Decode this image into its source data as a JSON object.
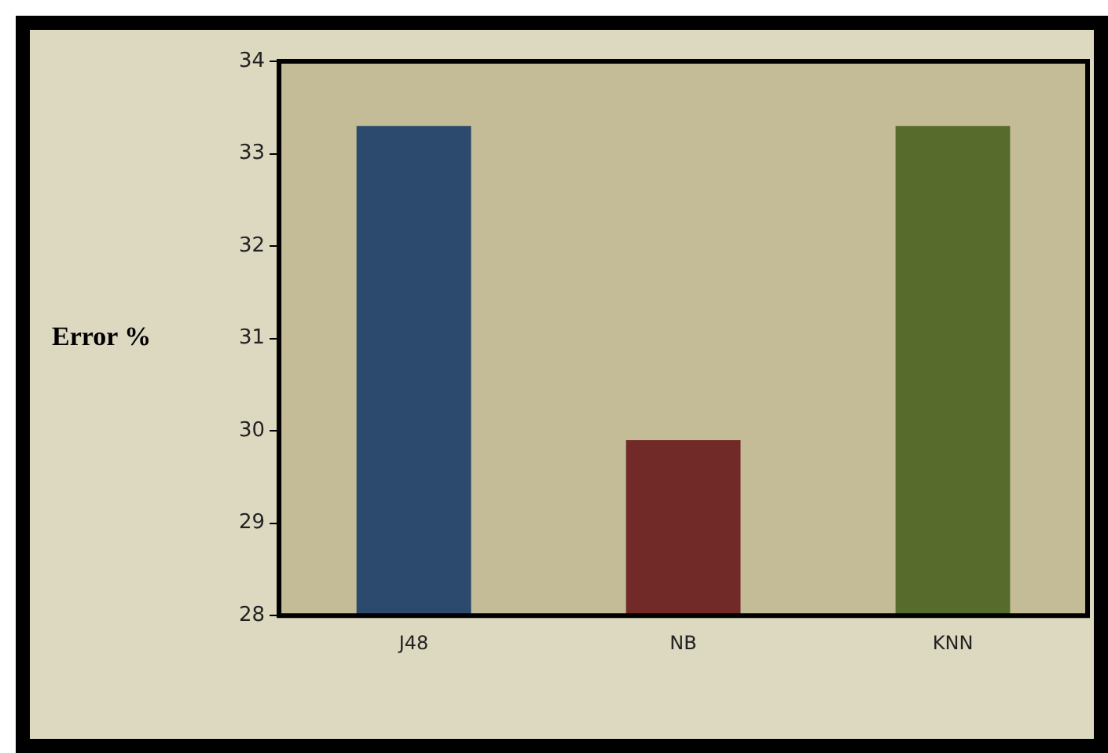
{
  "chart_data": {
    "type": "bar",
    "ylabel": "Error %",
    "categories": [
      "J48",
      "NB",
      "KNN"
    ],
    "colors": [
      "#2c4a6e",
      "#722a28",
      "#566b2c"
    ],
    "values": [
      33.3,
      29.9,
      33.3
    ],
    "ylim": [
      28,
      34
    ],
    "yticks": [
      28,
      29,
      30,
      31,
      32,
      33,
      34
    ],
    "grid": false,
    "legend": false
  }
}
